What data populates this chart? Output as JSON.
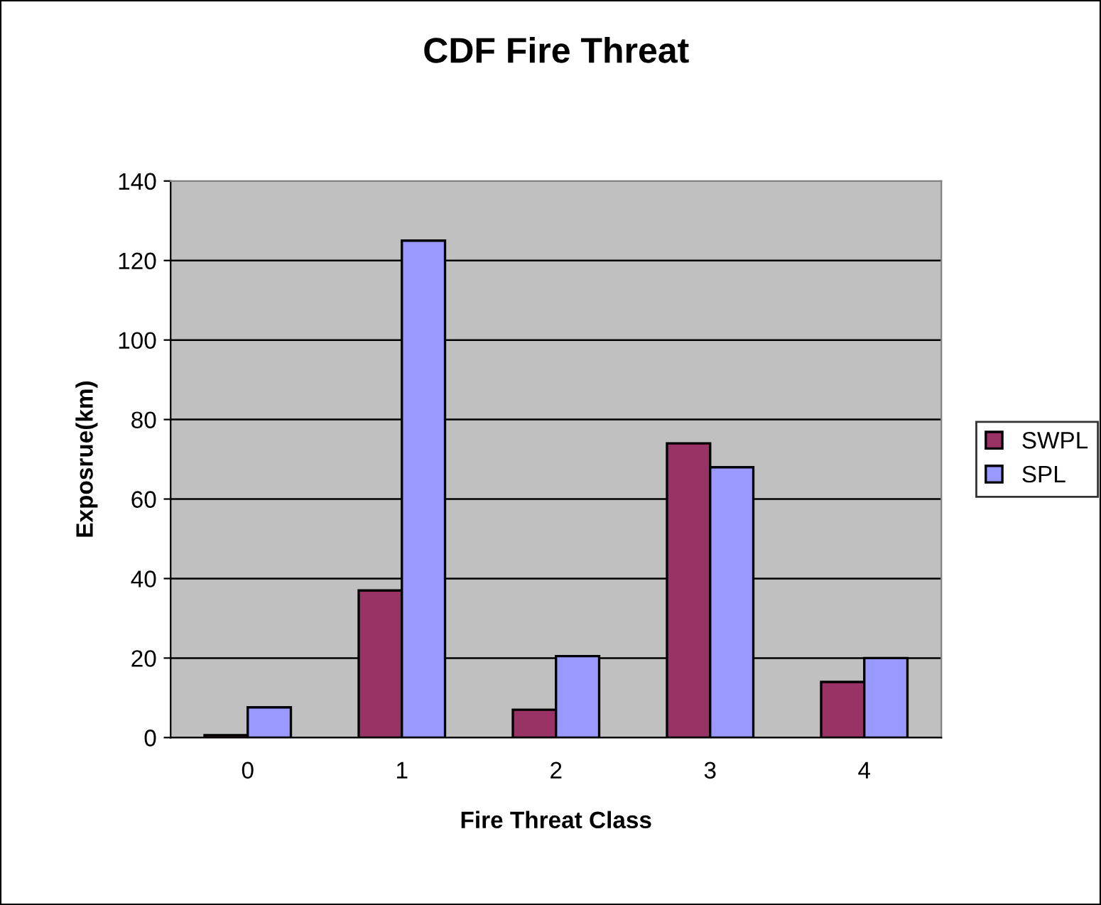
{
  "chart_data": {
    "type": "bar",
    "title": "CDF Fire Threat",
    "xlabel": "Fire Threat Class",
    "ylabel": "Exposrue(km)",
    "categories": [
      "0",
      "1",
      "2",
      "3",
      "4"
    ],
    "series": [
      {
        "name": "SWPL",
        "color": "#993366",
        "values": [
          0.6,
          37,
          7,
          74,
          14
        ]
      },
      {
        "name": "SPL",
        "color": "#9999ff",
        "values": [
          7.6,
          125,
          20.5,
          68,
          20
        ]
      }
    ],
    "ylim": [
      0,
      140
    ],
    "yticks": [
      0,
      20,
      40,
      60,
      80,
      100,
      120,
      140
    ],
    "grid": "y",
    "legend": "right"
  }
}
